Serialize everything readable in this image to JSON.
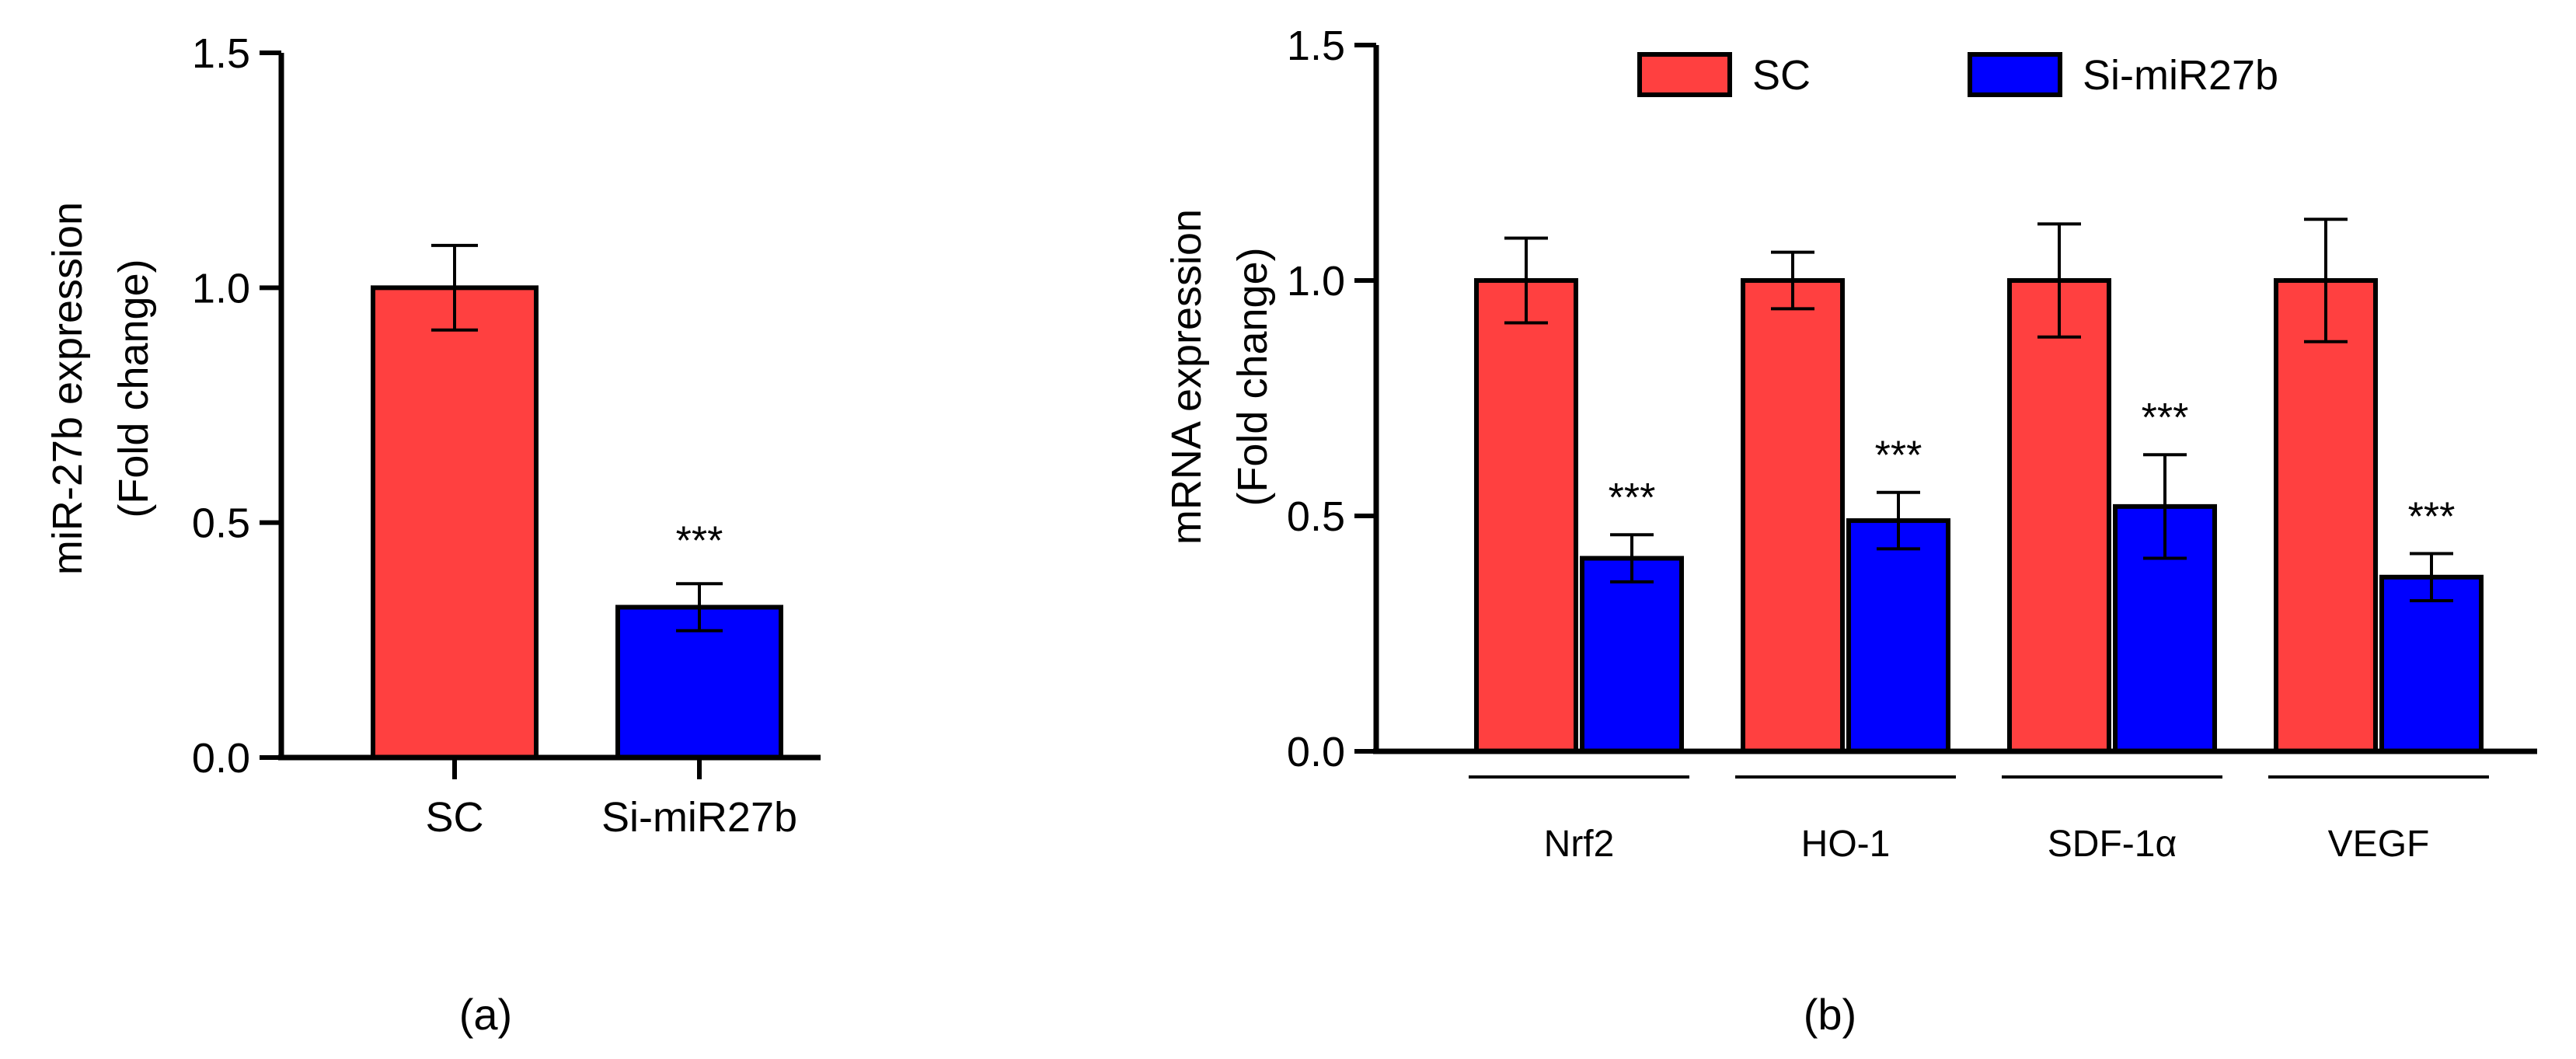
{
  "chart_data": [
    {
      "type": "bar",
      "panel_label": "(a)",
      "ylabel_line1": "miR-27b expression",
      "ylabel_line2": "(Fold change)",
      "ylim": [
        0,
        1.5
      ],
      "yticks": [
        "0.0",
        "0.5",
        "1.0",
        "1.5"
      ],
      "ytick_values": [
        0,
        0.5,
        1.0,
        1.5
      ],
      "categories": [
        "SC",
        "Si-miR27b"
      ],
      "values": [
        1.0,
        0.32
      ],
      "errors": [
        0.09,
        0.05
      ],
      "colors": [
        "#ff4040",
        "#0000ff"
      ],
      "annotations": [
        "",
        "***"
      ]
    },
    {
      "type": "bar",
      "panel_label": "(b)",
      "ylabel_line1": "mRNA expression",
      "ylabel_line2": "(Fold change)",
      "ylim": [
        0,
        1.5
      ],
      "yticks": [
        "0.0",
        "0.5",
        "1.0",
        "1.5"
      ],
      "ytick_values": [
        0,
        0.5,
        1.0,
        1.5
      ],
      "categories": [
        "Nrf2",
        "HO-1",
        "SDF-1α",
        "VEGF"
      ],
      "series": [
        {
          "name": "SC",
          "color": "#ff4040",
          "values": [
            1.0,
            1.0,
            1.0,
            1.0
          ],
          "errors": [
            0.09,
            0.06,
            0.12,
            0.13
          ],
          "annotations": [
            "",
            "",
            "",
            ""
          ]
        },
        {
          "name": "Si-miR27b",
          "color": "#0000ff",
          "values": [
            0.41,
            0.49,
            0.52,
            0.37
          ],
          "errors": [
            0.05,
            0.06,
            0.11,
            0.05
          ],
          "annotations": [
            "***",
            "***",
            "***",
            "***"
          ]
        }
      ],
      "legend": [
        "SC",
        "Si-miR27b"
      ]
    }
  ]
}
